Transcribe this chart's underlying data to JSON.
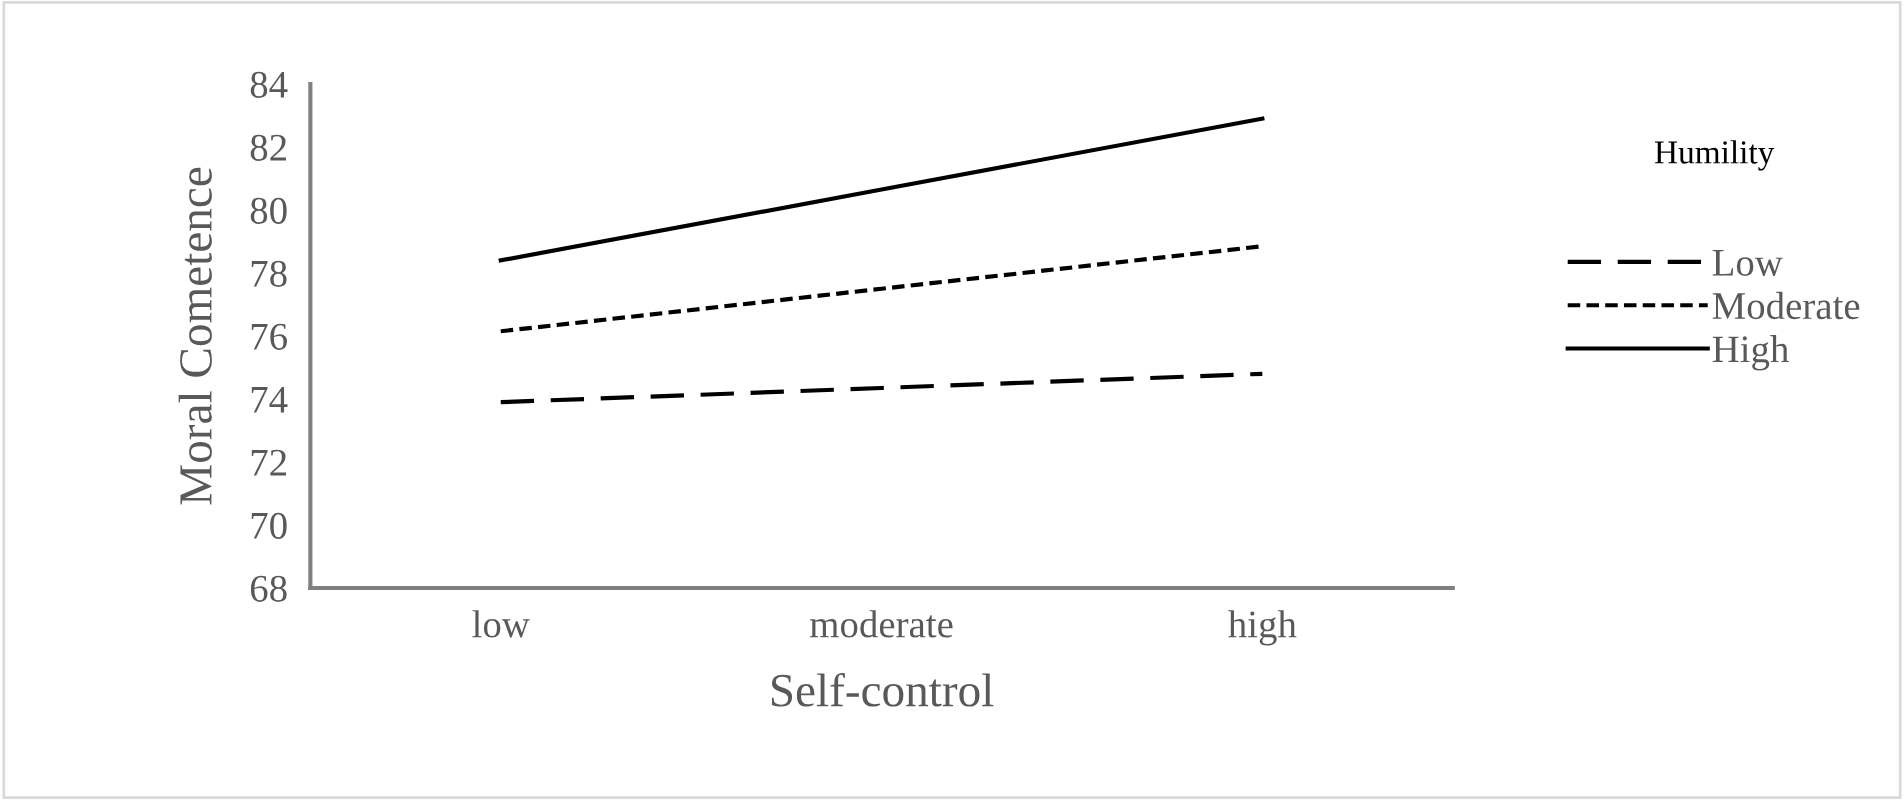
{
  "chart_data": {
    "type": "line",
    "xlabel": "Self-control",
    "ylabel": "Moral Cometence",
    "legend_title": "Humility",
    "categories": [
      "low",
      "moderate",
      "high"
    ],
    "series": [
      {
        "name": "Low",
        "color": "#000000",
        "line_style": "dashed",
        "values": [
          73.9,
          74.35,
          74.8
        ]
      },
      {
        "name": "Moderate",
        "color": "#000000",
        "line_style": "dotted",
        "values": [
          76.15,
          77.5,
          78.85
        ]
      },
      {
        "name": "High",
        "color": "#000000",
        "line_style": "solid",
        "values": [
          78.4,
          80.65,
          82.9
        ]
      }
    ],
    "ylim": [
      68,
      84
    ],
    "yticks": [
      68,
      70,
      72,
      74,
      76,
      78,
      80,
      82,
      84
    ],
    "grid": false,
    "legend": "right",
    "marker": "none"
  }
}
